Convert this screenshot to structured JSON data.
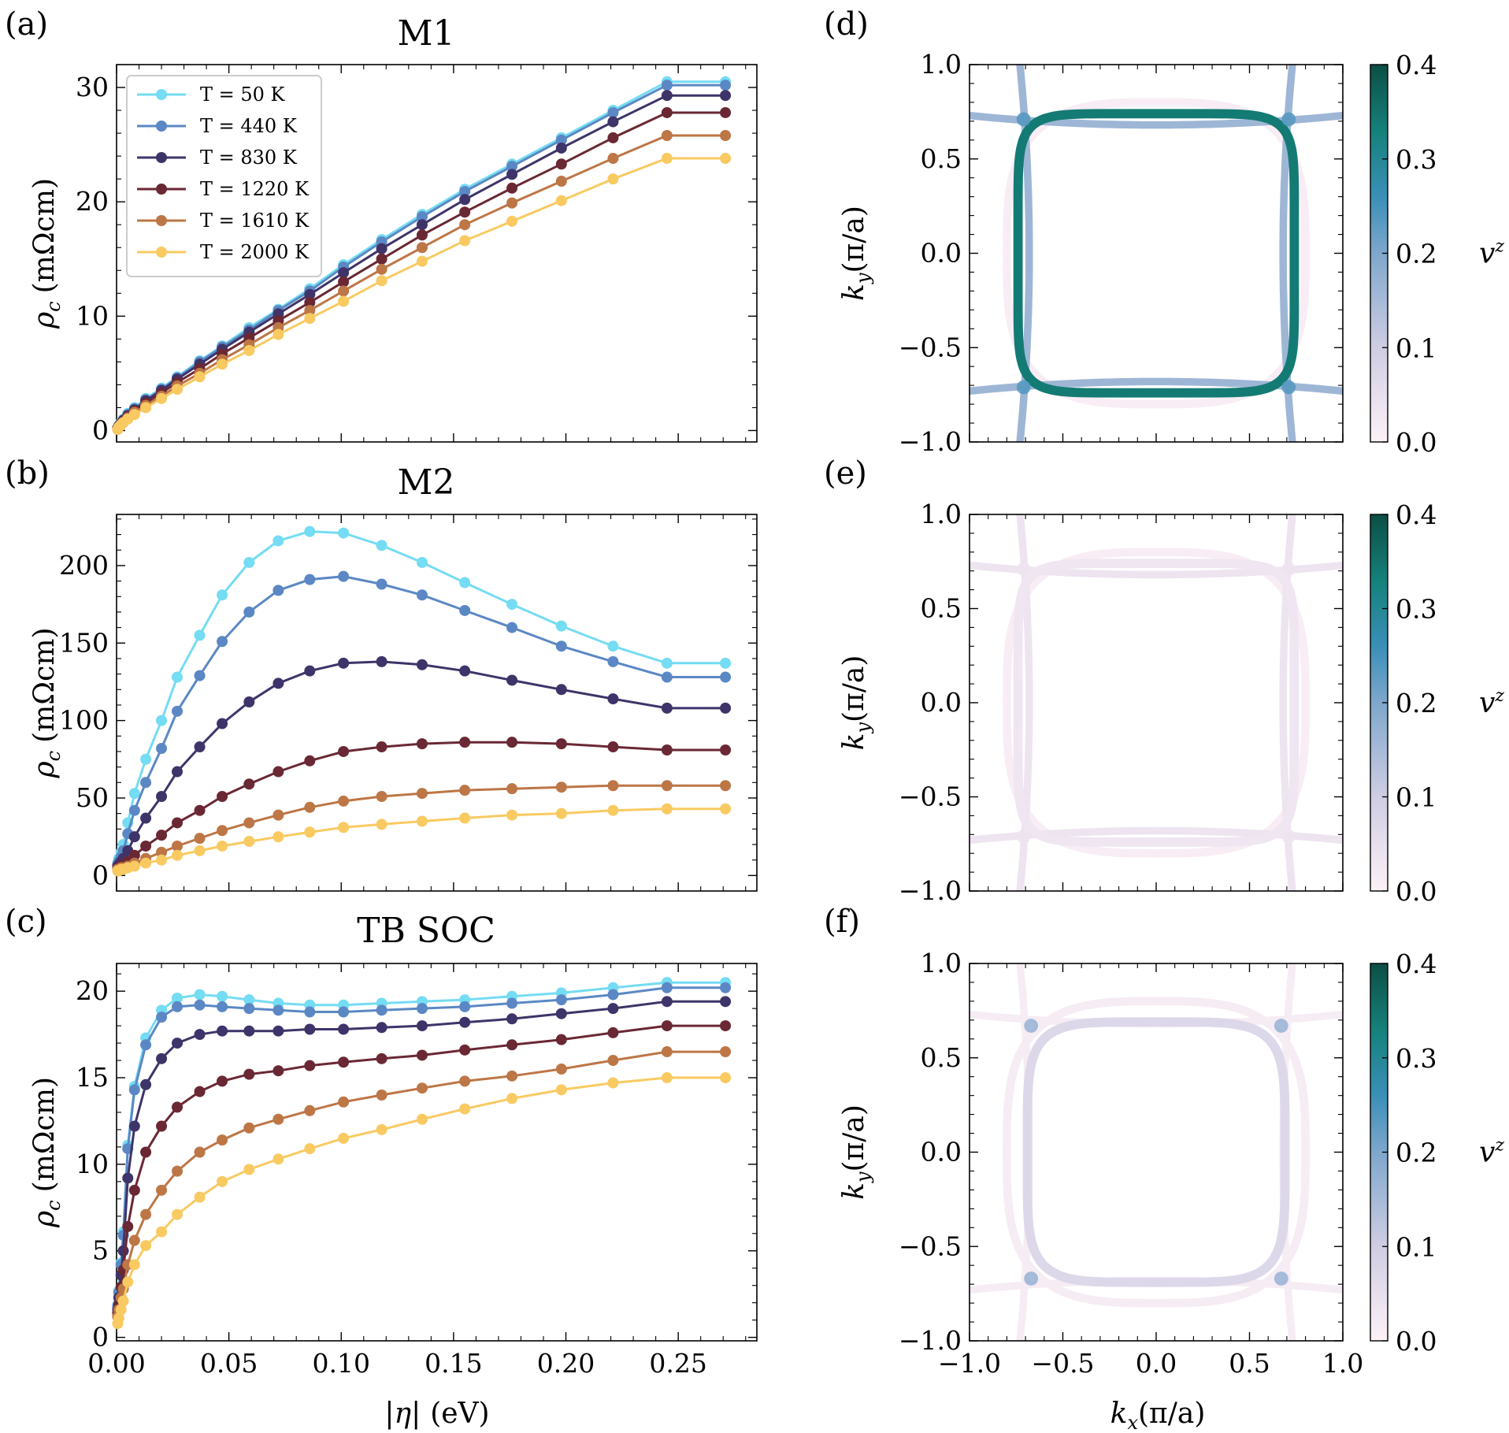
{
  "figure": {
    "panel_labels": [
      "(a)",
      "(b)",
      "(c)",
      "(d)",
      "(e)",
      "(f)"
    ]
  },
  "colors": {
    "series": [
      "#74dcf3",
      "#5b88c4",
      "#3e3469",
      "#6a2834",
      "#bd7646",
      "#f8ca61"
    ],
    "colormap": [
      "#fdf1f7",
      "#cfcde3",
      "#7ea7cc",
      "#3a8fb8",
      "#15827c",
      "#0b4f45"
    ]
  },
  "x_axis_label": {
    "main": "|η|",
    "unit": "(eV)"
  },
  "y_axis_label": {
    "main": "ρ",
    "sub": "c",
    "unit": "(mΩcm)"
  },
  "legend": [
    "T = 50 K",
    "T = 440 K",
    "T = 830 K",
    "T = 1220 K",
    "T = 1610 K",
    "T = 2000 K"
  ],
  "map_axis_labels": {
    "x": {
      "main": "k",
      "sub": "x",
      "rest": "(π/a)"
    },
    "y": {
      "main": "k",
      "sub": "y",
      "rest": "(π/a)"
    },
    "colorbar": {
      "main": "v",
      "sup": "z"
    }
  },
  "colorbar": {
    "ticks": [
      "0.0",
      "0.1",
      "0.2",
      "0.3",
      "0.4"
    ],
    "range": [
      0,
      0.4
    ]
  },
  "chart_data": [
    {
      "id": "a",
      "type": "line",
      "title": "M1",
      "xlabel": "|η| (eV)",
      "ylabel": "ρ_c (mΩcm)",
      "xlim": [
        0,
        0.285
      ],
      "ylim": [
        -1,
        32
      ],
      "xticks": [
        0,
        0.05,
        0.1,
        0.15,
        0.2,
        0.25
      ],
      "yticks": [
        0,
        10,
        20,
        30
      ],
      "ytick_labels": [
        "0",
        "10",
        "20",
        "30"
      ],
      "x": [
        0.0005,
        0.001,
        0.002,
        0.003,
        0.005,
        0.008,
        0.013,
        0.02,
        0.027,
        0.037,
        0.047,
        0.059,
        0.072,
        0.086,
        0.101,
        0.118,
        0.136,
        0.155,
        0.176,
        0.198,
        0.221,
        0.245,
        0.271
      ],
      "series": [
        {
          "name": "T = 50 K",
          "values": [
            0.2,
            0.4,
            0.7,
            1.0,
            1.5,
            2.0,
            2.8,
            3.7,
            4.7,
            6.1,
            7.4,
            9.0,
            10.6,
            12.4,
            14.5,
            16.7,
            18.9,
            21.1,
            23.3,
            25.6,
            28.0,
            30.5,
            30.5
          ]
        },
        {
          "name": "T = 440 K",
          "values": [
            0.2,
            0.4,
            0.6,
            0.9,
            1.4,
            1.9,
            2.7,
            3.6,
            4.6,
            6.0,
            7.3,
            8.8,
            10.5,
            12.2,
            14.3,
            16.5,
            18.7,
            20.9,
            23.1,
            25.4,
            27.8,
            30.2,
            30.2
          ]
        },
        {
          "name": "T = 830 K",
          "values": [
            0.2,
            0.4,
            0.6,
            0.9,
            1.3,
            1.8,
            2.6,
            3.5,
            4.5,
            5.8,
            7.1,
            8.6,
            10.2,
            11.9,
            13.8,
            15.9,
            18.0,
            20.2,
            22.4,
            24.7,
            27.0,
            29.3,
            29.3
          ]
        },
        {
          "name": "T = 1220 K",
          "values": [
            0.2,
            0.3,
            0.6,
            0.8,
            1.2,
            1.7,
            2.4,
            3.3,
            4.2,
            5.4,
            6.7,
            8.1,
            9.6,
            11.2,
            13.0,
            15.0,
            17.1,
            19.1,
            21.2,
            23.3,
            25.6,
            27.8,
            27.8
          ]
        },
        {
          "name": "T = 1610 K",
          "values": [
            0.1,
            0.3,
            0.5,
            0.7,
            1.1,
            1.6,
            2.2,
            3.0,
            3.9,
            5.0,
            6.2,
            7.5,
            9.0,
            10.5,
            12.2,
            14.1,
            16.0,
            18.0,
            19.9,
            21.8,
            23.8,
            25.8,
            25.8
          ]
        },
        {
          "name": "T = 2000 K",
          "values": [
            0.1,
            0.3,
            0.5,
            0.7,
            1.0,
            1.4,
            2.0,
            2.8,
            3.6,
            4.7,
            5.8,
            7.0,
            8.4,
            9.8,
            11.3,
            13.1,
            14.8,
            16.6,
            18.3,
            20.1,
            22.0,
            23.8,
            23.8
          ]
        }
      ]
    },
    {
      "id": "b",
      "type": "line",
      "title": "M2",
      "xlabel": "|η| (eV)",
      "ylabel": "ρ_c (mΩcm)",
      "xlim": [
        0,
        0.285
      ],
      "ylim": [
        -10,
        233
      ],
      "xticks": [
        0,
        0.05,
        0.1,
        0.15,
        0.2,
        0.25
      ],
      "yticks": [
        0,
        50,
        100,
        150,
        200
      ],
      "ytick_labels": [
        "0",
        "50",
        "100",
        "150",
        "200"
      ],
      "x": [
        0.0005,
        0.001,
        0.002,
        0.003,
        0.005,
        0.008,
        0.013,
        0.02,
        0.027,
        0.037,
        0.047,
        0.059,
        0.072,
        0.086,
        0.101,
        0.118,
        0.136,
        0.155,
        0.176,
        0.198,
        0.221,
        0.245,
        0.271
      ],
      "series": [
        {
          "name": "T = 50 K",
          "values": [
            8,
            11,
            15,
            20,
            34,
            53,
            75,
            100,
            128,
            155,
            181,
            202,
            216,
            222,
            221,
            213,
            202,
            189,
            175,
            161,
            148,
            137,
            137
          ]
        },
        {
          "name": "T = 440 K",
          "values": [
            7,
            9,
            12,
            16,
            27,
            42,
            60,
            82,
            106,
            129,
            151,
            170,
            184,
            191,
            193,
            188,
            181,
            171,
            160,
            148,
            138,
            128,
            128
          ]
        },
        {
          "name": "T = 830 K",
          "values": [
            6,
            7,
            9,
            11,
            16,
            25,
            37,
            51,
            67,
            83,
            98,
            112,
            124,
            132,
            137,
            138,
            136,
            132,
            126,
            120,
            114,
            108,
            108
          ]
        },
        {
          "name": "T = 1220 K",
          "values": [
            5,
            5,
            6,
            7,
            9,
            13,
            19,
            26,
            34,
            42,
            51,
            59,
            67,
            74,
            80,
            83,
            85,
            86,
            86,
            85,
            83,
            81,
            81
          ]
        },
        {
          "name": "T = 1610 K",
          "values": [
            4,
            4,
            5,
            5,
            6,
            8,
            11,
            15,
            19,
            24,
            29,
            34,
            39,
            44,
            48,
            51,
            53,
            55,
            56,
            57,
            58,
            58,
            58
          ]
        },
        {
          "name": "T = 2000 K",
          "values": [
            3,
            3,
            4,
            4,
            5,
            6,
            8,
            10,
            13,
            16,
            19,
            22,
            25,
            28,
            31,
            33,
            35,
            37,
            39,
            40,
            42,
            43,
            43
          ]
        }
      ]
    },
    {
      "id": "c",
      "type": "line",
      "title": "TB SOC",
      "xlabel": "|η| (eV)",
      "ylabel": "ρ_c (mΩcm)",
      "xlim": [
        0,
        0.285
      ],
      "ylim": [
        -0.2,
        21.6
      ],
      "xticks": [
        0,
        0.05,
        0.1,
        0.15,
        0.2,
        0.25
      ],
      "xtick_labels": [
        "0.00",
        "0.05",
        "0.10",
        "0.15",
        "0.20",
        "0.25"
      ],
      "yticks": [
        0,
        5,
        10,
        15,
        20
      ],
      "ytick_labels": [
        "0",
        "5",
        "10",
        "15",
        "20"
      ],
      "x": [
        0.0005,
        0.001,
        0.002,
        0.003,
        0.005,
        0.008,
        0.013,
        0.02,
        0.027,
        0.037,
        0.047,
        0.059,
        0.072,
        0.086,
        0.101,
        0.118,
        0.136,
        0.155,
        0.176,
        0.198,
        0.221,
        0.245,
        0.271
      ],
      "series": [
        {
          "name": "T = 50 K",
          "values": [
            1.9,
            2.7,
            4.3,
            6.1,
            11.1,
            14.5,
            17.3,
            18.9,
            19.6,
            19.8,
            19.7,
            19.5,
            19.3,
            19.2,
            19.2,
            19.3,
            19.4,
            19.5,
            19.7,
            19.9,
            20.2,
            20.5,
            20.5
          ]
        },
        {
          "name": "T = 440 K",
          "values": [
            1.8,
            2.6,
            4.2,
            5.9,
            10.9,
            14.3,
            16.9,
            18.5,
            19.1,
            19.2,
            19.1,
            19.0,
            18.9,
            18.8,
            18.8,
            18.9,
            19.0,
            19.1,
            19.3,
            19.5,
            19.8,
            20.2,
            20.2
          ]
        },
        {
          "name": "T = 830 K",
          "values": [
            1.6,
            2.3,
            3.6,
            5.0,
            9.2,
            12.2,
            14.6,
            16.1,
            17.0,
            17.5,
            17.7,
            17.7,
            17.7,
            17.8,
            17.8,
            17.9,
            18.0,
            18.2,
            18.4,
            18.7,
            19.0,
            19.4,
            19.4
          ]
        },
        {
          "name": "T = 1220 K",
          "values": [
            1.4,
            1.9,
            2.9,
            3.9,
            6.4,
            8.5,
            10.7,
            12.2,
            13.3,
            14.2,
            14.8,
            15.2,
            15.4,
            15.7,
            15.9,
            16.1,
            16.3,
            16.6,
            16.9,
            17.2,
            17.6,
            18.0,
            18.0
          ]
        },
        {
          "name": "T = 1610 K",
          "values": [
            1.2,
            1.6,
            2.3,
            2.8,
            4.2,
            5.6,
            7.1,
            8.5,
            9.6,
            10.7,
            11.4,
            12.1,
            12.6,
            13.1,
            13.6,
            14.0,
            14.4,
            14.8,
            15.1,
            15.5,
            16.0,
            16.5,
            16.5
          ]
        },
        {
          "name": "T = 2000 K",
          "values": [
            0.8,
            1.1,
            1.6,
            2.1,
            3.2,
            4.2,
            5.3,
            6.1,
            7.1,
            8.1,
            9.0,
            9.7,
            10.3,
            10.9,
            11.5,
            12.0,
            12.6,
            13.2,
            13.8,
            14.3,
            14.7,
            15.0,
            15.0
          ]
        }
      ]
    },
    {
      "id": "d",
      "type": "heatmap",
      "description_mode": "fermi-surface",
      "xlim": [
        -1,
        1
      ],
      "ylim": [
        -1,
        1
      ],
      "xticks": [
        -1,
        -0.5,
        0,
        0.5,
        1
      ],
      "yticks": [
        -1,
        -0.5,
        0,
        0.5,
        1
      ],
      "ytick_labels": [
        "−1.0",
        "−0.5",
        "0.0",
        "0.5",
        "1.0"
      ],
      "inner_pocket_vz": 0.34,
      "outer_pocket_vz": 0.01,
      "open_sheets_vz": 0.16,
      "crossing_vz": 0.24
    },
    {
      "id": "e",
      "type": "heatmap",
      "description_mode": "fermi-surface",
      "xlim": [
        -1,
        1
      ],
      "ylim": [
        -1,
        1
      ],
      "xticks": [
        -1,
        -0.5,
        0,
        0.5,
        1
      ],
      "yticks": [
        -1,
        -0.5,
        0,
        0.5,
        1
      ],
      "ytick_labels": [
        "−1.0",
        "−0.5",
        "0.0",
        "0.5",
        "1.0"
      ],
      "inner_pocket_vz": 0.03,
      "outer_pocket_vz": 0.01,
      "open_sheets_vz": 0.035,
      "crossing_vz": 0.035
    },
    {
      "id": "f",
      "type": "heatmap",
      "description_mode": "fermi-surface",
      "xlim": [
        -1,
        1
      ],
      "ylim": [
        -1,
        1
      ],
      "xticks": [
        -1,
        -0.5,
        0,
        0.5,
        1
      ],
      "yticks": [
        -1,
        -0.5,
        0,
        0.5,
        1
      ],
      "xtick_labels": [
        "−1.0",
        "−0.5",
        "0.0",
        "0.5",
        "1.0"
      ],
      "ytick_labels": [
        "−1.0",
        "−0.5",
        "0.0",
        "0.5",
        "1.0"
      ],
      "inner_pocket_vz": 0.07,
      "outer_pocket_vz": 0.015,
      "open_sheets_vz": 0.015,
      "crossing_vz": 0.17
    }
  ]
}
